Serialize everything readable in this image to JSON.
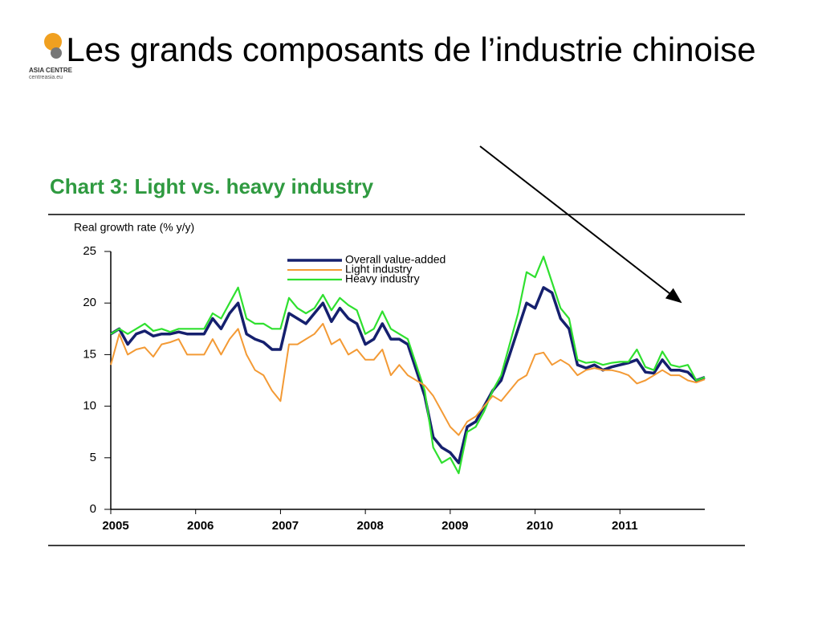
{
  "slide": {
    "title": "Les grands composants de l’industrie chinoise",
    "logo_name": "ASIA CENTRE",
    "logo_site": "centreasia.eu"
  },
  "chart_data": {
    "type": "line",
    "title": "Chart 3: Light vs. heavy industry",
    "y_label": "Real growth rate (% y/y)",
    "x": [
      2005,
      2005.1,
      2005.2,
      2005.3,
      2005.4,
      2005.5,
      2005.6,
      2005.7,
      2005.8,
      2005.9,
      2006,
      2006.1,
      2006.2,
      2006.3,
      2006.4,
      2006.5,
      2006.6,
      2006.7,
      2006.8,
      2006.9,
      2007,
      2007.1,
      2007.2,
      2007.3,
      2007.4,
      2007.5,
      2007.6,
      2007.7,
      2007.8,
      2007.9,
      2008,
      2008.1,
      2008.2,
      2008.3,
      2008.4,
      2008.5,
      2008.6,
      2008.7,
      2008.8,
      2008.9,
      2009,
      2009.1,
      2009.2,
      2009.3,
      2009.4,
      2009.5,
      2009.6,
      2009.7,
      2009.8,
      2009.9,
      2010,
      2010.1,
      2010.2,
      2010.3,
      2010.4,
      2010.5,
      2010.6,
      2010.7,
      2010.8,
      2010.9,
      2011,
      2011.1,
      2011.2,
      2011.3,
      2011.4,
      2011.5,
      2011.6,
      2011.7,
      2011.8,
      2011.9,
      2012
    ],
    "series": [
      {
        "name": "Overall value-added",
        "color": "#15206e",
        "width": 3.5,
        "values": [
          17,
          17.5,
          16,
          17,
          17.3,
          16.8,
          17,
          17,
          17.2,
          17,
          17,
          17,
          18.5,
          17.5,
          19,
          20,
          17,
          16.5,
          16.2,
          15.5,
          15.5,
          19,
          18.5,
          18,
          19,
          20,
          18.2,
          19.5,
          18.5,
          18,
          16,
          16.5,
          18,
          16.5,
          16.5,
          16,
          13.5,
          11,
          7,
          6,
          5.5,
          4.5,
          8,
          8.5,
          10,
          11.5,
          12.5,
          15,
          17.5,
          20,
          19.5,
          21.5,
          21,
          18.5,
          17.5,
          14,
          13.7,
          14,
          13.5,
          13.8,
          14,
          14.2,
          14.5,
          13.3,
          13.2,
          14.5,
          13.5,
          13.5,
          13.3,
          12.5,
          12.8
        ]
      },
      {
        "name": "Light industry",
        "color": "#f39a35",
        "width": 2,
        "values": [
          14,
          17,
          15,
          15.5,
          15.7,
          14.8,
          16,
          16.2,
          16.5,
          15,
          15,
          15,
          16.5,
          15,
          16.5,
          17.5,
          15,
          13.5,
          13,
          11.5,
          10.5,
          16,
          16,
          16.5,
          17,
          18,
          16,
          16.5,
          15,
          15.5,
          14.5,
          14.5,
          15.5,
          13,
          14,
          13,
          12.5,
          12,
          11,
          9.5,
          8,
          7.2,
          8.5,
          9,
          10,
          11,
          10.5,
          11.5,
          12.5,
          13,
          15,
          15.2,
          14,
          14.5,
          14,
          13,
          13.5,
          13.7,
          13.5,
          13.5,
          13.3,
          13,
          12.2,
          12.5,
          13,
          13.5,
          13,
          13,
          12.5,
          12.3,
          12.6
        ]
      },
      {
        "name": "Heavy industry",
        "color": "#2fe02f",
        "width": 2.2,
        "values": [
          17,
          17.5,
          17,
          17.5,
          18,
          17.3,
          17.5,
          17.2,
          17.5,
          17.5,
          17.5,
          17.5,
          19,
          18.5,
          20,
          21.5,
          18.5,
          18,
          18,
          17.5,
          17.5,
          20.5,
          19.5,
          19,
          19.5,
          20.8,
          19.3,
          20.5,
          19.8,
          19.3,
          17,
          17.5,
          19.2,
          17.5,
          17,
          16.5,
          14,
          11.5,
          6,
          4.5,
          5,
          3.5,
          7.5,
          8,
          9.5,
          11.5,
          13,
          16,
          19,
          23,
          22.5,
          24.5,
          22,
          19.5,
          18.5,
          14.5,
          14.2,
          14.3,
          14,
          14.2,
          14.3,
          14.3,
          15.5,
          13.8,
          13.5,
          15.3,
          14,
          13.8,
          14,
          12.5,
          12.8
        ]
      }
    ],
    "xlim": [
      2005,
      2012
    ],
    "xticks": [
      2005,
      2006,
      2007,
      2008,
      2009,
      2010,
      2011
    ],
    "ylim": [
      0,
      25
    ],
    "yticks": [
      0,
      5,
      10,
      15,
      20,
      25
    ],
    "grid": false
  }
}
